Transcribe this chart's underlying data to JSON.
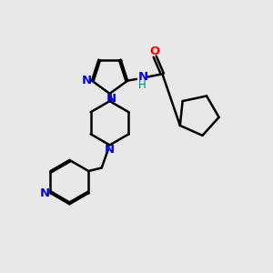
{
  "background_color": "#e8e8e8",
  "bond_color": "#000000",
  "N_color": "#0000ff",
  "O_color": "#ff0000",
  "H_color": "#008080",
  "figsize": [
    3.0,
    3.0
  ],
  "dpi": 100,
  "xlim": [
    0,
    10
  ],
  "ylim": [
    0,
    10
  ]
}
